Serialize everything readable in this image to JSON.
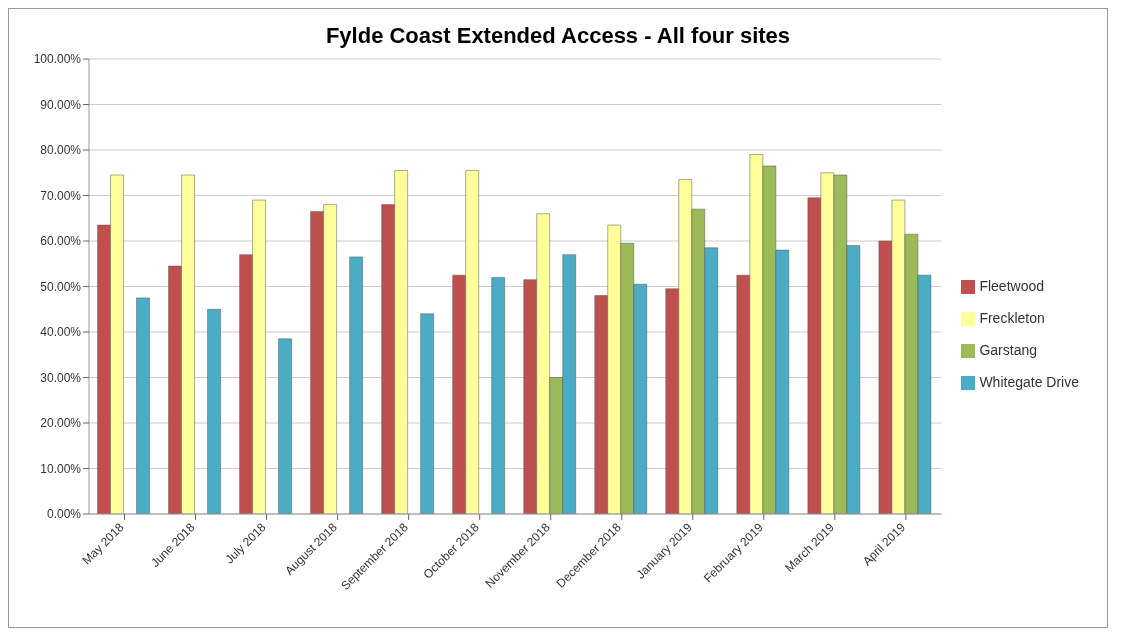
{
  "chart_data": {
    "type": "bar",
    "title": "Fylde Coast Extended Access - All four sites",
    "categories": [
      "May 2018",
      "June 2018",
      "July 2018",
      "August 2018",
      "September 2018",
      "October 2018",
      "November 2018",
      "December 2018",
      "January 2019",
      "February 2019",
      "March 2019",
      "April 2019"
    ],
    "series": [
      {
        "name": "Fleetwood",
        "color": "#c0504d",
        "values": [
          63.5,
          54.5,
          57,
          66.5,
          68,
          52.5,
          51.5,
          48,
          49.5,
          52.5,
          69.5,
          60
        ]
      },
      {
        "name": "Freckleton",
        "color": "#ffff99",
        "values": [
          74.5,
          74.5,
          69,
          68,
          75.5,
          75.5,
          66,
          63.5,
          73.5,
          79,
          75,
          69
        ]
      },
      {
        "name": "Garstang",
        "color": "#9bbb59",
        "values": [
          null,
          null,
          null,
          null,
          null,
          null,
          30,
          59.5,
          67,
          76.5,
          74.5,
          61.5
        ]
      },
      {
        "name": "Whitegate Drive",
        "color": "#4bacc6",
        "values": [
          47.5,
          45,
          38.5,
          56.5,
          44,
          52,
          57,
          50.5,
          58.5,
          58,
          59,
          52.5
        ]
      }
    ],
    "ylim": [
      0,
      100
    ],
    "yticks": [
      {
        "value": 0,
        "label": "0.00%"
      },
      {
        "value": 10,
        "label": "10.00%"
      },
      {
        "value": 20,
        "label": "20.00%"
      },
      {
        "value": 30,
        "label": "30.00%"
      },
      {
        "value": 40,
        "label": "40.00%"
      },
      {
        "value": 50,
        "label": "50.00%"
      },
      {
        "value": 60,
        "label": "60.00%"
      },
      {
        "value": 70,
        "label": "70.00%"
      },
      {
        "value": 80,
        "label": "80.00%"
      },
      {
        "value": 90,
        "label": "90.00%"
      },
      {
        "value": 100,
        "label": "100.00%"
      }
    ],
    "grid": "y",
    "legend": "right"
  }
}
